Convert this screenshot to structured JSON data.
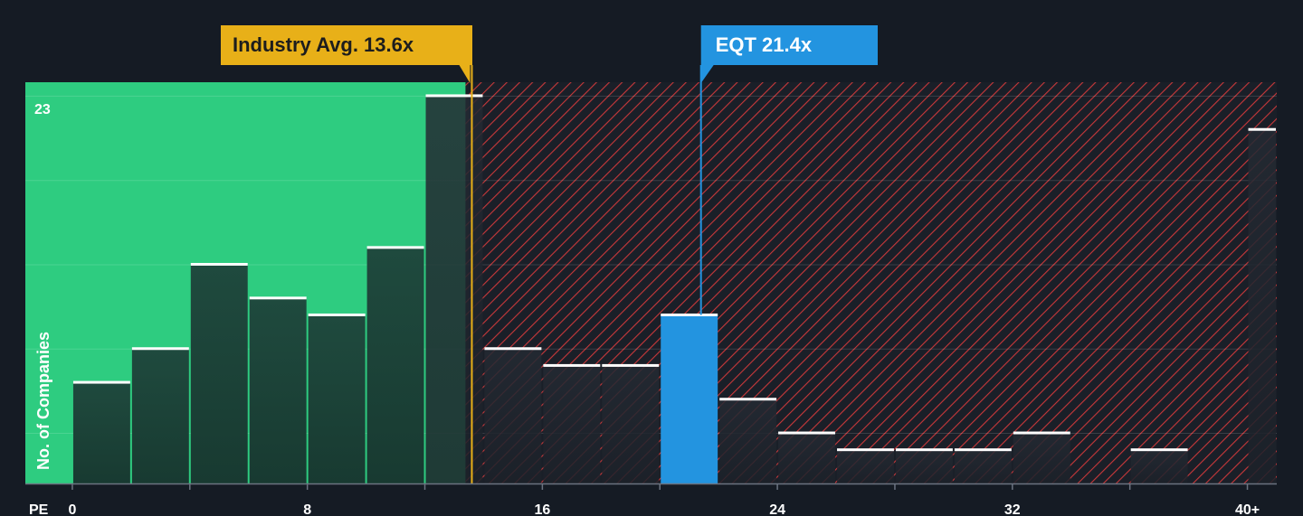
{
  "chart_data": {
    "type": "bar",
    "title": "",
    "xlabel": "PE",
    "ylabel": "No. of Companies",
    "xlim": [
      -1.6,
      41
    ],
    "ylim": [
      0,
      23.8
    ],
    "y_tick_labels": [
      {
        "value": 23,
        "label": "23"
      }
    ],
    "x_ticks": [
      {
        "value": 0,
        "label": "0"
      },
      {
        "value": 8,
        "label": "8"
      },
      {
        "value": 16,
        "label": "16"
      },
      {
        "value": 24,
        "label": "24"
      },
      {
        "value": 32,
        "label": "32"
      },
      {
        "value": 40,
        "label": "40+"
      }
    ],
    "bin_width": 2,
    "bins": [
      {
        "x0": 0,
        "x1": 2,
        "count": 6
      },
      {
        "x0": 2,
        "x1": 4,
        "count": 8
      },
      {
        "x0": 4,
        "x1": 6,
        "count": 13
      },
      {
        "x0": 6,
        "x1": 8,
        "count": 11
      },
      {
        "x0": 8,
        "x1": 10,
        "count": 10
      },
      {
        "x0": 10,
        "x1": 12,
        "count": 14
      },
      {
        "x0": 12,
        "x1": 14,
        "count": 23
      },
      {
        "x0": 14,
        "x1": 16,
        "count": 8
      },
      {
        "x0": 16,
        "x1": 18,
        "count": 7
      },
      {
        "x0": 18,
        "x1": 20,
        "count": 7
      },
      {
        "x0": 20,
        "x1": 22,
        "count": 10,
        "highlight": true
      },
      {
        "x0": 22,
        "x1": 24,
        "count": 5
      },
      {
        "x0": 24,
        "x1": 26,
        "count": 3
      },
      {
        "x0": 26,
        "x1": 28,
        "count": 2
      },
      {
        "x0": 28,
        "x1": 30,
        "count": 2
      },
      {
        "x0": 30,
        "x1": 32,
        "count": 2
      },
      {
        "x0": 32,
        "x1": 34,
        "count": 3
      },
      {
        "x0": 34,
        "x1": 36,
        "count": 0
      },
      {
        "x0": 36,
        "x1": 38,
        "count": 2
      },
      {
        "x0": 38,
        "x1": 40,
        "count": 0
      },
      {
        "x0": 40,
        "x1": 41,
        "count": 21
      }
    ],
    "industry_avg": {
      "value": 13.6,
      "label": "Industry Avg. 13.6x"
    },
    "company": {
      "value": 21.4,
      "label": "EQT 21.4x"
    },
    "grid": true,
    "colors": {
      "background": "#151b24",
      "green_zone": "#2ecc80",
      "red_hatch": "#d43a3a",
      "bar_dark": "#1f4a3e",
      "bar_cap": "#ffffff",
      "highlight": "#2394e0",
      "industry_callout": "#e8b018",
      "company_callout": "#2394e0"
    }
  }
}
